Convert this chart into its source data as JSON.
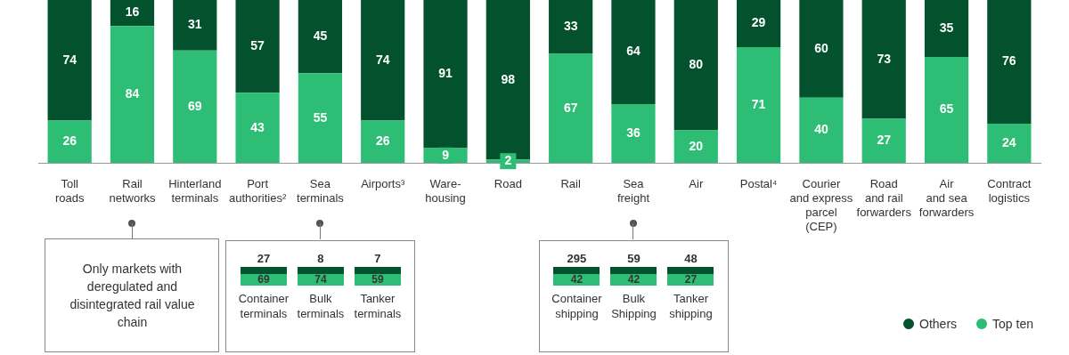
{
  "chart_data": [
    {
      "type": "bar",
      "stacked": true,
      "categories": [
        "Toll roads",
        "Rail networks",
        "Hinterland terminals",
        "Port authorities²",
        "Sea terminals",
        "Airports³",
        "Ware-housing",
        "Road",
        "Rail",
        "Sea freight",
        "Air",
        "Postal⁴",
        "Courier and express parcel (CEP)",
        "Road and rail forwarders",
        "Air and sea forwarders",
        "Contract logistics"
      ],
      "series": [
        {
          "name": "Top ten",
          "color": "#2dbd75",
          "values": [
            26,
            84,
            69,
            43,
            55,
            26,
            9,
            2,
            67,
            36,
            20,
            71,
            40,
            27,
            65,
            24
          ]
        },
        {
          "name": "Others",
          "color": "#03522d",
          "values": [
            74,
            16,
            31,
            57,
            45,
            74,
            91,
            98,
            33,
            64,
            80,
            29,
            60,
            73,
            35,
            76
          ]
        }
      ],
      "ylim": [
        0,
        100
      ],
      "data_labels": true,
      "legend": "bottom right",
      "annotations": [
        "Only markets with deregulated and disintegrated rail value chain"
      ]
    },
    {
      "type": "other",
      "data_labels": true,
      "categories": [
        "Container terminals",
        "Bulk terminals",
        "Tanker terminals"
      ],
      "series": [
        {
          "color": "#2dbd75",
          "values": [
            69,
            74,
            59
          ]
        },
        {
          "color": "#03522d",
          "values": [
            27,
            8,
            7
          ]
        }
      ]
    },
    {
      "type": "other",
      "data_labels": true,
      "categories": [
        "Container shipping",
        "Bulk Shipping",
        "Tanker shipping"
      ],
      "series": [
        {
          "color": "#2dbd75",
          "values": [
            42,
            42,
            27
          ]
        },
        {
          "color": "#03522d",
          "values": [
            295,
            59,
            48
          ]
        }
      ]
    }
  ]
}
